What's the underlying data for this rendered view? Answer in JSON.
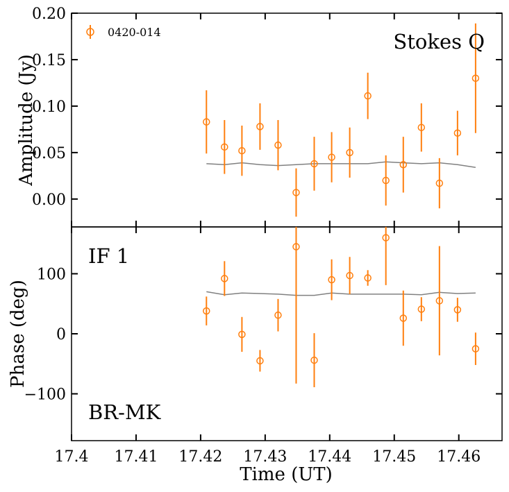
{
  "chart_data": [
    {
      "type": "scatter",
      "panel": "top",
      "ylabel": "Amplitude (Jy)",
      "annotation": "Stokes Q",
      "ylim": [
        -0.03,
        0.2
      ],
      "yticks": [
        0.0,
        0.05,
        0.1,
        0.15,
        0.2
      ],
      "ytick_labels": [
        "0.00",
        "0.05",
        "0.10",
        "0.15",
        "0.20"
      ],
      "legend": {
        "label": "0420-014",
        "placement": "top-left"
      },
      "series": [
        {
          "name": "0420-014",
          "color": "#ff7f0e",
          "marker": "open-circle",
          "x": [
            17.4209,
            17.4237,
            17.4264,
            17.4292,
            17.432,
            17.4348,
            17.4376,
            17.4403,
            17.4431,
            17.4459,
            17.4487,
            17.4514,
            17.4542,
            17.457,
            17.4598,
            17.4626
          ],
          "y": [
            0.083,
            0.056,
            0.052,
            0.078,
            0.058,
            0.007,
            0.038,
            0.045,
            0.05,
            0.111,
            0.02,
            0.037,
            0.077,
            0.017,
            0.071,
            0.13
          ],
          "err": [
            0.034,
            0.029,
            0.027,
            0.025,
            0.027,
            0.026,
            0.029,
            0.027,
            0.027,
            0.025,
            0.027,
            0.03,
            0.026,
            0.027,
            0.024,
            0.059
          ]
        },
        {
          "kind": "model-line",
          "color": "#808080",
          "x": [
            17.4209,
            17.4237,
            17.4264,
            17.4292,
            17.432,
            17.4348,
            17.4376,
            17.4403,
            17.4431,
            17.4459,
            17.4487,
            17.4514,
            17.4542,
            17.457,
            17.4598,
            17.4626
          ],
          "y": [
            0.038,
            0.037,
            0.039,
            0.037,
            0.036,
            0.037,
            0.038,
            0.038,
            0.038,
            0.038,
            0.04,
            0.039,
            0.038,
            0.039,
            0.037,
            0.034
          ]
        }
      ]
    },
    {
      "type": "scatter",
      "panel": "bottom",
      "ylabel": "Phase (deg)",
      "xlabel": "Time (UT)",
      "annotations": [
        "IF 1",
        "BR-MK"
      ],
      "ylim": [
        -178,
        178
      ],
      "yticks": [
        -100,
        0,
        100
      ],
      "ytick_labels": [
        "−100",
        "0",
        "100"
      ],
      "xlim": [
        17.4,
        17.4667
      ],
      "xticks": [
        17.4,
        17.41,
        17.42,
        17.43,
        17.44,
        17.45,
        17.46
      ],
      "xtick_labels": [
        "17.4",
        "17.41",
        "17.42",
        "17.43",
        "17.44",
        "17.45",
        "17.46"
      ],
      "series": [
        {
          "name": "0420-014",
          "color": "#ff7f0e",
          "marker": "open-circle",
          "x": [
            17.4209,
            17.4237,
            17.4264,
            17.4292,
            17.432,
            17.4348,
            17.4376,
            17.4403,
            17.4431,
            17.4459,
            17.4487,
            17.4514,
            17.4542,
            17.457,
            17.4598,
            17.4626
          ],
          "y": [
            38,
            92,
            -1,
            -45,
            31,
            145,
            -44,
            90,
            97,
            93,
            160,
            26,
            41,
            55,
            40,
            -25
          ],
          "err": [
            24,
            29,
            29,
            18,
            27,
            228,
            45,
            34,
            31,
            13,
            79,
            46,
            20,
            91,
            20,
            27
          ]
        },
        {
          "kind": "model-line",
          "color": "#808080",
          "x": [
            17.4209,
            17.4237,
            17.4264,
            17.4292,
            17.432,
            17.4348,
            17.4376,
            17.4403,
            17.4431,
            17.4459,
            17.4487,
            17.4514,
            17.4542,
            17.457,
            17.4598,
            17.4626
          ],
          "y": [
            70,
            65,
            68,
            67,
            66,
            64,
            64,
            68,
            66,
            66,
            66,
            66,
            65,
            69,
            67,
            68
          ]
        }
      ]
    }
  ]
}
